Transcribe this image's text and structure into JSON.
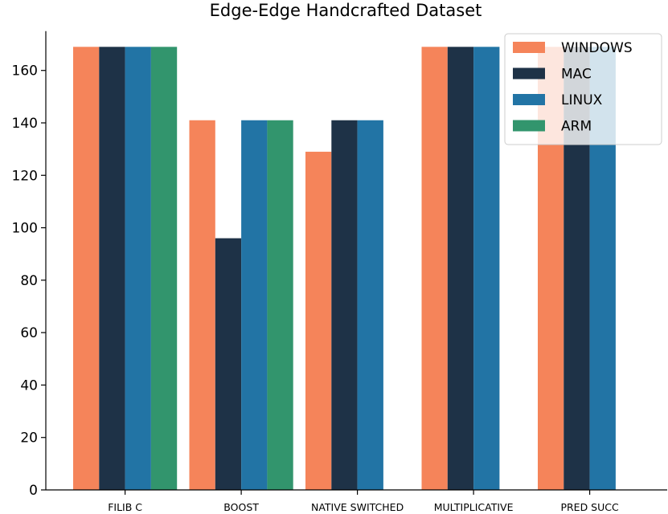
{
  "chart_data": {
    "type": "bar",
    "title": "Edge-Edge Handcrafted Dataset",
    "xlabel": "",
    "ylabel": "",
    "categories": [
      "FILIB C",
      "BOOST",
      "NATIVE SWITCHED",
      "MULTIPLICATIVE",
      "PRED SUCC"
    ],
    "series": [
      {
        "name": "WINDOWS",
        "color": "#f5845a",
        "values": [
          169,
          141,
          129,
          169,
          169
        ]
      },
      {
        "name": "MAC",
        "color": "#1e3247",
        "values": [
          169,
          96,
          141,
          169,
          169
        ]
      },
      {
        "name": "LINUX",
        "color": "#2274a5",
        "values": [
          169,
          141,
          141,
          169,
          169
        ]
      },
      {
        "name": "ARM",
        "color": "#32956d",
        "values": [
          169,
          141,
          null,
          null,
          null
        ]
      }
    ],
    "ylim": [
      0,
      175
    ],
    "yticks": [
      0,
      20,
      40,
      60,
      80,
      100,
      120,
      140,
      160
    ],
    "grid": false,
    "legend_position": "top-right"
  }
}
